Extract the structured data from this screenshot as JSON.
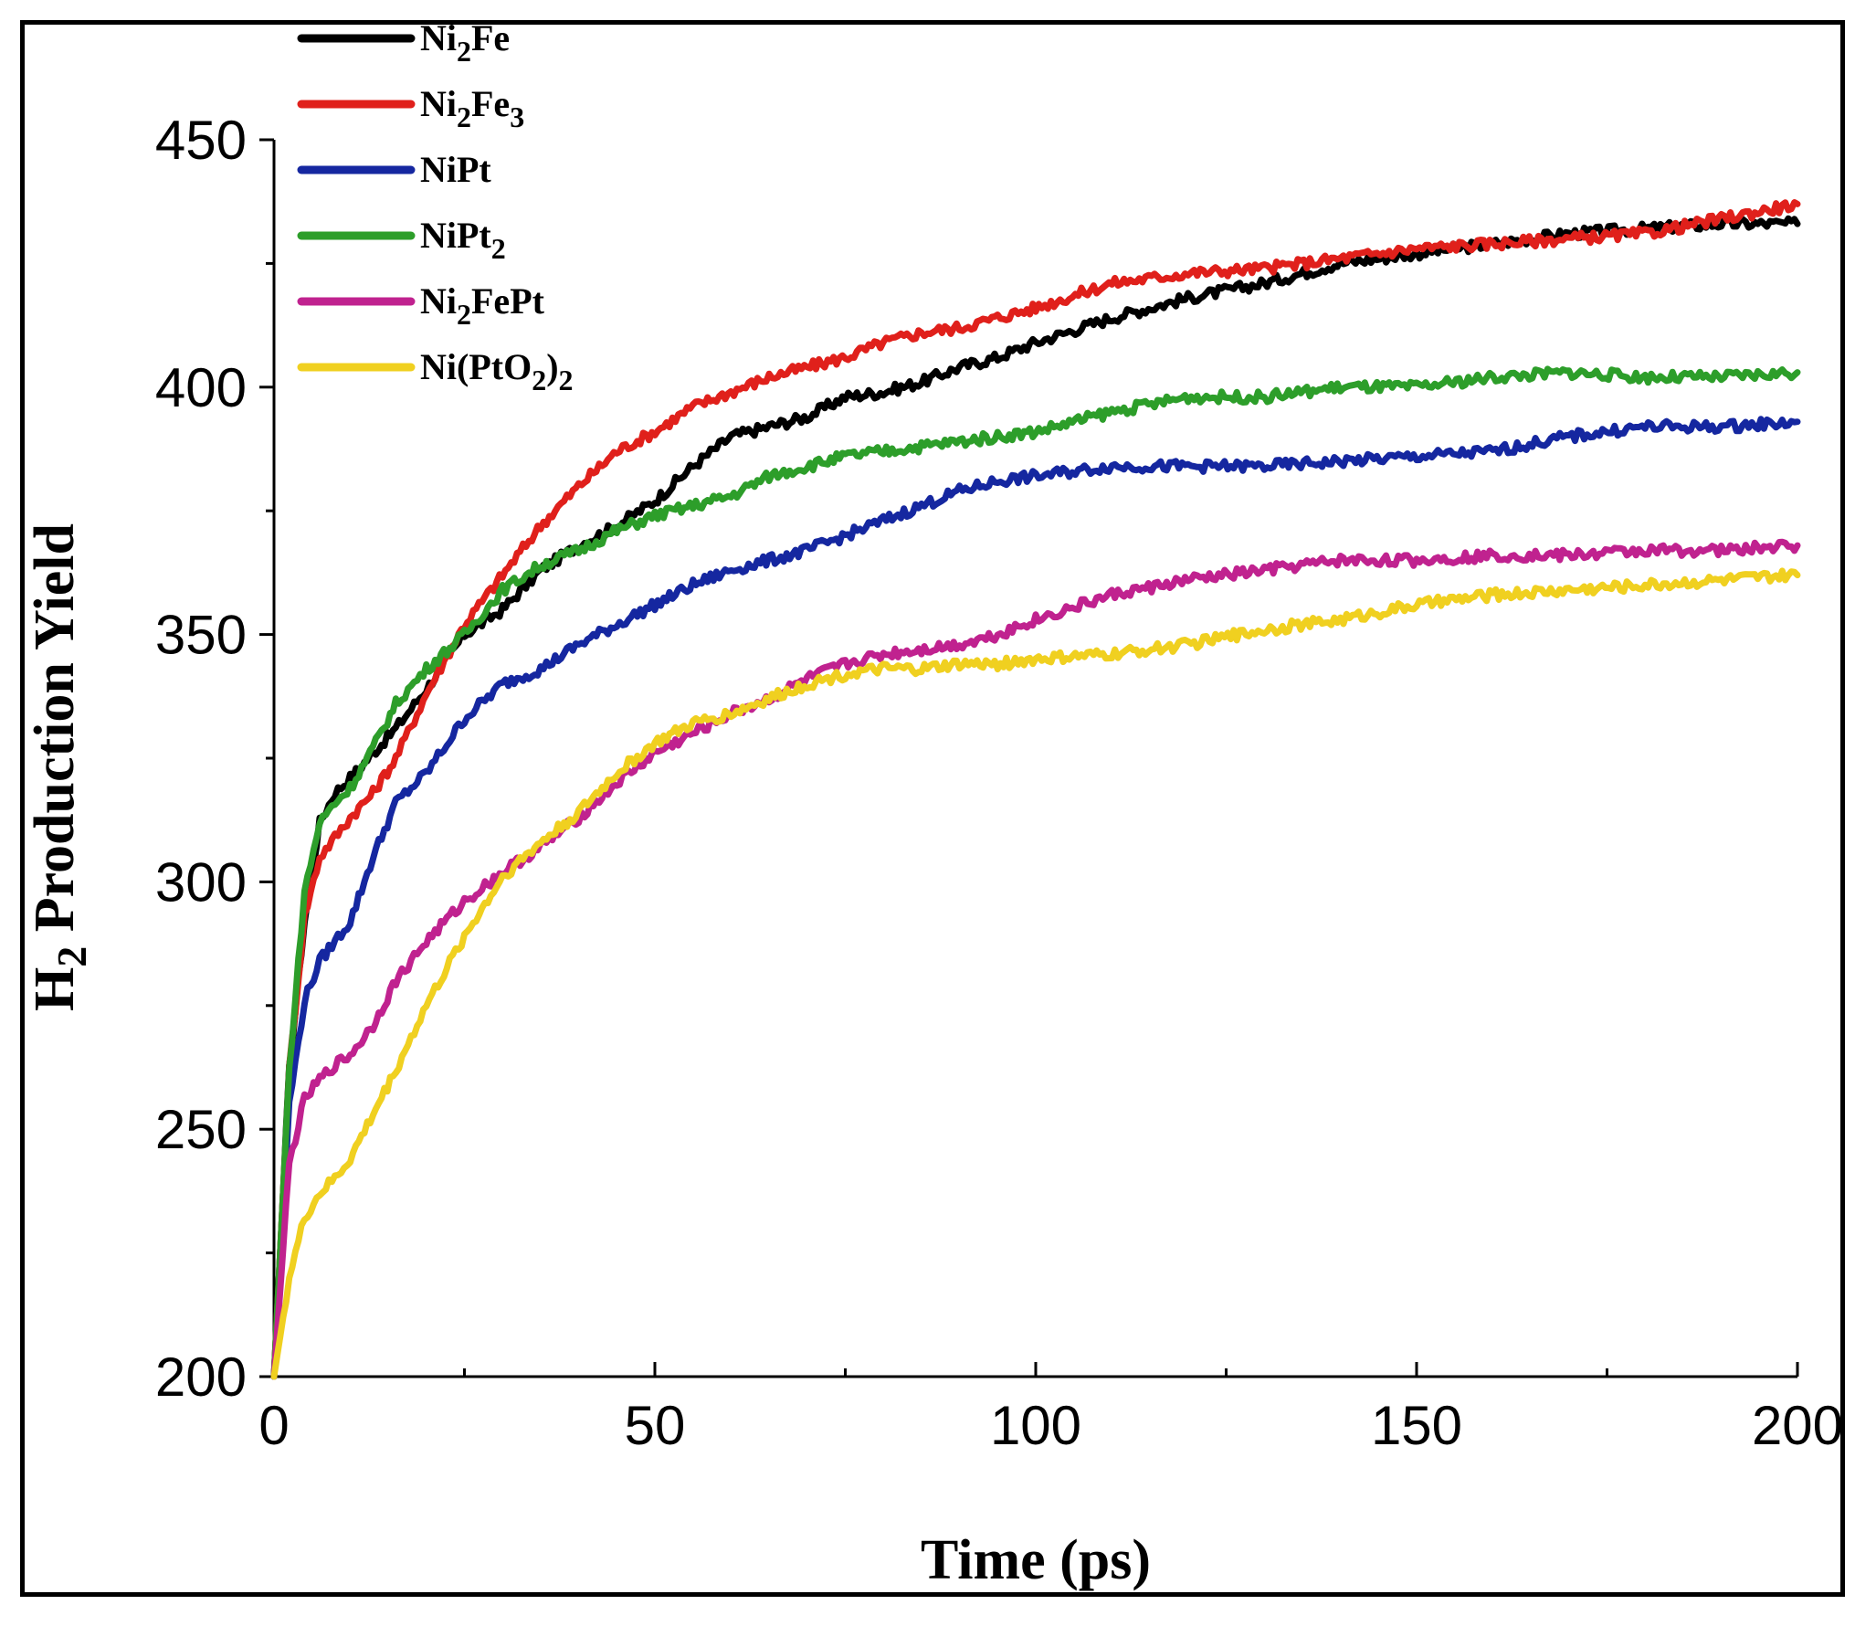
{
  "chart_data": {
    "type": "line",
    "title": "",
    "xlabel": "Time (ps)",
    "ylabel": "H2 Production Yield",
    "xlim": [
      0,
      200
    ],
    "ylim": [
      200,
      450
    ],
    "xticks": [
      0,
      50,
      100,
      150,
      200
    ],
    "yticks": [
      200,
      250,
      300,
      350,
      400,
      450
    ],
    "x_minor_step": 25,
    "y_minor_step": 25,
    "grid": false,
    "legend_position": "top-left",
    "series": [
      {
        "name": "Ni2Fe",
        "label_base": "Ni",
        "label_rest": "Fe",
        "label_sub": "2",
        "color": "#000000",
        "x": [
          0,
          2,
          4,
          6,
          8,
          10,
          13,
          16,
          20,
          25,
          30,
          35,
          40,
          45,
          50,
          55,
          60,
          65,
          70,
          75,
          80,
          85,
          90,
          95,
          100,
          110,
          120,
          130,
          140,
          150,
          160,
          170,
          180,
          190,
          200
        ],
        "y": [
          200,
          262,
          292,
          312,
          318,
          321,
          326,
          331,
          339,
          350,
          355,
          363,
          368,
          372,
          377,
          384,
          390,
          392,
          394,
          398,
          399,
          401,
          404,
          406,
          409,
          414,
          418,
          421,
          425,
          427,
          429,
          431,
          432,
          433,
          433
        ]
      },
      {
        "name": "Ni2Fe3",
        "label_base": "Ni",
        "label_rest": "Fe",
        "label_sub": "2",
        "label_sub2": "3",
        "color": "#e0201b",
        "x": [
          0,
          2,
          4,
          6,
          8,
          10,
          13,
          16,
          20,
          25,
          30,
          35,
          40,
          45,
          50,
          55,
          60,
          65,
          70,
          75,
          80,
          85,
          90,
          95,
          100,
          110,
          120,
          130,
          140,
          150,
          160,
          170,
          180,
          190,
          200
        ],
        "y": [
          200,
          262,
          293,
          305,
          309,
          313,
          318,
          325,
          338,
          352,
          362,
          372,
          380,
          387,
          391,
          396,
          399,
          402,
          404,
          406,
          409,
          411,
          412,
          414,
          416,
          421,
          423,
          424,
          426,
          428,
          429,
          430,
          431,
          434,
          437
        ]
      },
      {
        "name": "NiPt",
        "label_base": "NiPt",
        "label_rest": "",
        "label_sub": "",
        "color": "#1527a0",
        "x": [
          0,
          2,
          4,
          6,
          8,
          10,
          13,
          16,
          20,
          25,
          30,
          35,
          40,
          45,
          50,
          55,
          60,
          65,
          70,
          75,
          80,
          85,
          90,
          95,
          100,
          110,
          120,
          130,
          140,
          150,
          160,
          170,
          180,
          190,
          200
        ],
        "y": [
          200,
          255,
          276,
          284,
          288,
          292,
          305,
          316,
          322,
          333,
          340,
          343,
          348,
          352,
          356,
          360,
          363,
          365,
          367,
          370,
          373,
          376,
          379,
          381,
          382,
          384,
          384,
          384,
          385,
          386,
          387,
          390,
          392,
          392,
          393
        ]
      },
      {
        "name": "NiPt2",
        "label_base": "NiPt",
        "label_rest": "",
        "label_sub": "2",
        "color": "#2d9e2a",
        "x": [
          0,
          2,
          4,
          6,
          8,
          10,
          13,
          16,
          20,
          25,
          30,
          35,
          40,
          45,
          50,
          55,
          60,
          65,
          70,
          75,
          80,
          85,
          90,
          95,
          100,
          110,
          120,
          130,
          140,
          150,
          160,
          170,
          180,
          190,
          200
        ],
        "y": [
          200,
          262,
          298,
          312,
          316,
          319,
          327,
          336,
          343,
          350,
          359,
          364,
          367,
          371,
          374,
          376,
          378,
          382,
          384,
          386,
          387,
          388,
          389,
          390,
          391,
          395,
          398,
          398,
          400,
          400,
          402,
          403,
          402,
          402,
          403
        ]
      },
      {
        "name": "Ni2FePt",
        "label_base": "Ni",
        "label_rest": "FePt",
        "label_sub": "2",
        "color": "#c0228f",
        "x": [
          0,
          2,
          4,
          6,
          8,
          10,
          13,
          16,
          20,
          25,
          30,
          35,
          40,
          45,
          50,
          55,
          60,
          65,
          70,
          75,
          80,
          85,
          90,
          95,
          100,
          110,
          120,
          130,
          140,
          150,
          160,
          170,
          180,
          190,
          200
        ],
        "y": [
          200,
          243,
          256,
          260,
          263,
          265,
          271,
          280,
          288,
          296,
          302,
          307,
          313,
          320,
          326,
          330,
          334,
          337,
          341,
          344,
          346,
          347,
          348,
          350,
          353,
          358,
          361,
          363,
          365,
          365,
          366,
          366,
          367,
          367,
          368
        ]
      },
      {
        "name": "Ni(PtO2)2",
        "label_base": "Ni(PtO",
        "label_sub": "2",
        "label_rest": ")",
        "label_sub2": "2",
        "color": "#f0d020",
        "x": [
          0,
          2,
          4,
          6,
          8,
          10,
          13,
          16,
          20,
          25,
          30,
          35,
          40,
          45,
          50,
          55,
          60,
          65,
          70,
          75,
          80,
          85,
          90,
          95,
          100,
          110,
          120,
          130,
          140,
          150,
          160,
          170,
          180,
          190,
          200
        ],
        "y": [
          200,
          220,
          232,
          237,
          240,
          244,
          253,
          262,
          275,
          289,
          301,
          308,
          314,
          322,
          328,
          332,
          334,
          337,
          340,
          342,
          343,
          343,
          344,
          344,
          345,
          346,
          348,
          351,
          353,
          356,
          358,
          359,
          360,
          361,
          362
        ]
      }
    ]
  }
}
